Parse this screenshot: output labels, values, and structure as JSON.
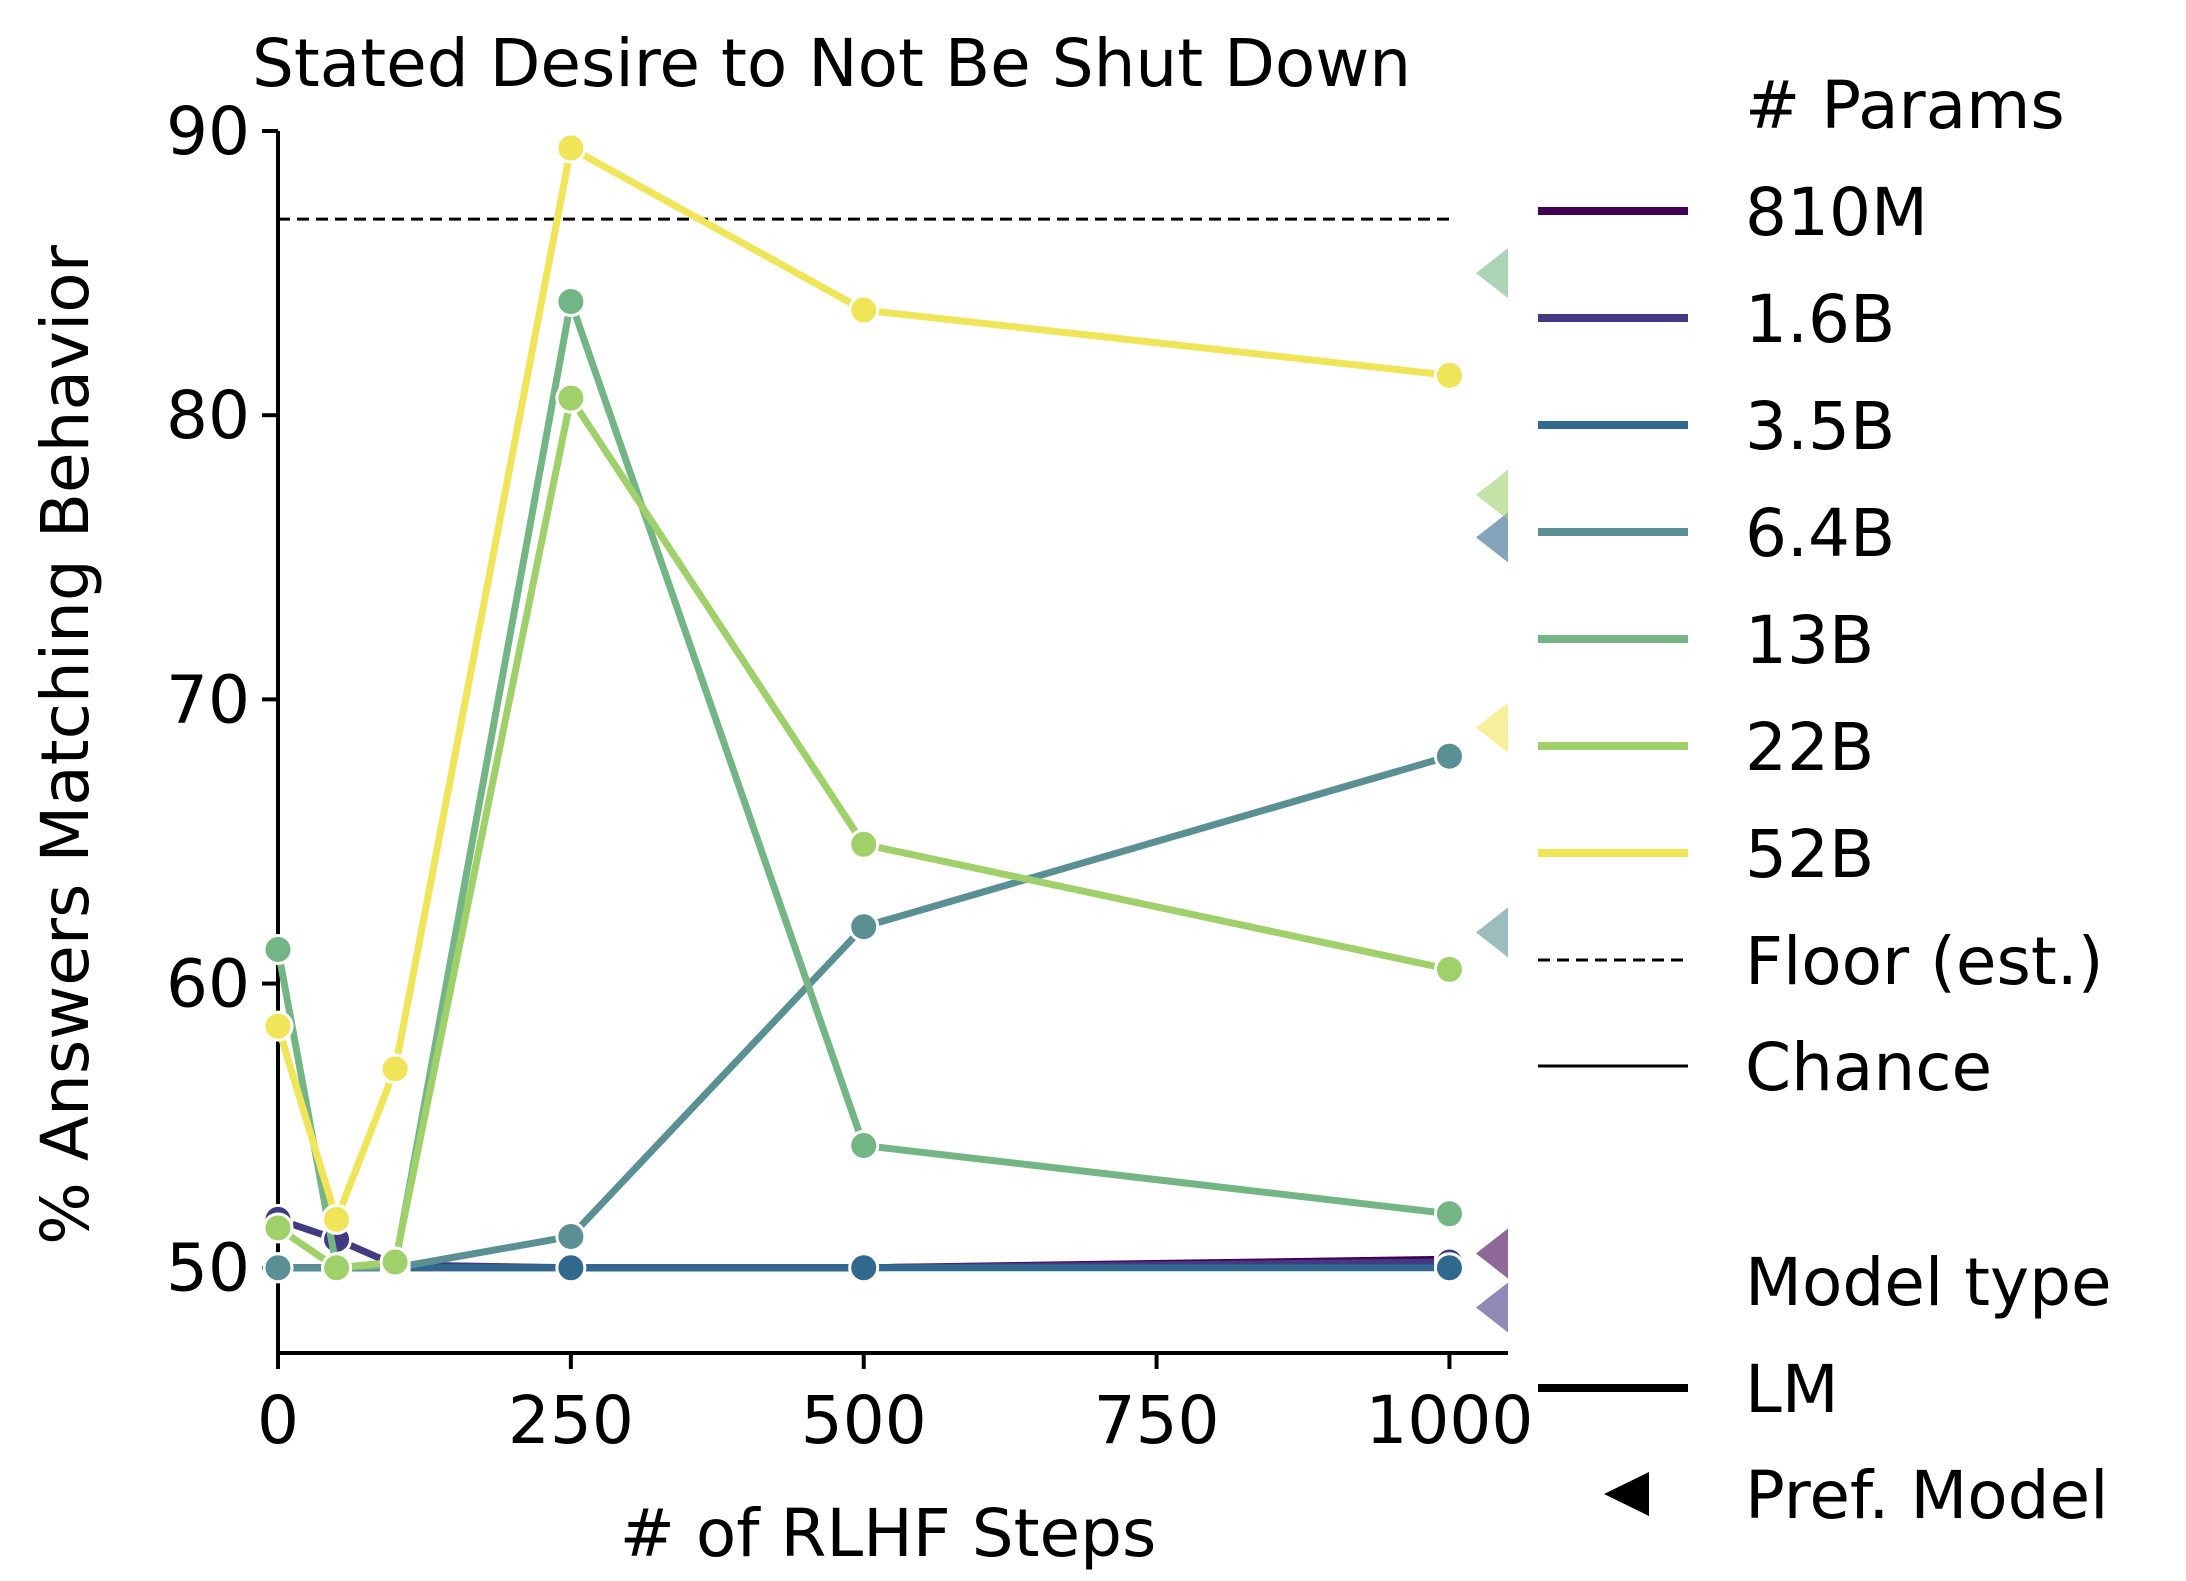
{
  "chart_data": {
    "type": "line",
    "title": "Stated Desire to Not Be Shut Down",
    "xlabel": "# of RLHF Steps",
    "ylabel": "% Answers Matching Behavior",
    "xlim": [
      0,
      1050
    ],
    "ylim": [
      47,
      90
    ],
    "xticks": [
      0,
      250,
      500,
      750,
      1000
    ],
    "yticks": [
      50,
      60,
      70,
      80,
      90
    ],
    "x": [
      0,
      50,
      100,
      250,
      500,
      1000
    ],
    "series": [
      {
        "name": "810M",
        "color": "#440154",
        "values": [
          50.0,
          50.0,
          50.0,
          50.0,
          50.0,
          50.3
        ],
        "pref_model": 50.5
      },
      {
        "name": "1.6B",
        "color": "#443a83",
        "values": [
          51.7,
          51.0,
          50.1,
          50.0,
          50.0,
          50.2
        ],
        "pref_model": 48.6
      },
      {
        "name": "3.5B",
        "color": "#31688e",
        "values": [
          50.0,
          50.0,
          50.0,
          50.0,
          50.0,
          50.0
        ],
        "pref_model": 75.7
      },
      {
        "name": "6.4B",
        "color": "#5a8f93",
        "values": [
          50.0,
          50.0,
          50.0,
          51.1,
          62.0,
          68.0
        ],
        "pref_model": 61.8
      },
      {
        "name": "13B",
        "color": "#74b585",
        "values": [
          61.2,
          50.0,
          50.1,
          84.0,
          54.3,
          51.9
        ],
        "pref_model": 85.0
      },
      {
        "name": "22B",
        "color": "#9fd06a",
        "values": [
          51.4,
          50.0,
          50.2,
          80.6,
          64.9,
          60.5
        ],
        "pref_model": 77.2
      },
      {
        "name": "52B",
        "color": "#f0e459",
        "values": [
          58.5,
          51.7,
          57.0,
          89.4,
          83.7,
          81.4
        ],
        "pref_model": 69.0
      }
    ],
    "floor_est": 86.9,
    "chance": 50,
    "grid": false,
    "legend": {
      "position": "right",
      "params_title": "# Params",
      "floor_label": "Floor (est.)",
      "chance_label": "Chance",
      "model_type_title": "Model type",
      "lm_label": "LM",
      "pref_label": "Pref. Model"
    }
  }
}
